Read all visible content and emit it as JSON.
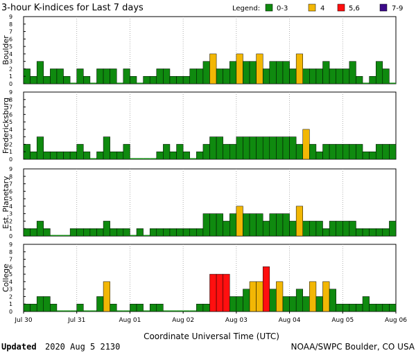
{
  "colors": {
    "quiet": "#0f8a0f",
    "active": "#f2b705",
    "storm": "#ff0f0f",
    "severe": "#3d0a8a",
    "bar_edge": "#000000",
    "frame": "#000000",
    "grid": "#9a9a9a"
  },
  "footer": {
    "updated_label": "Updated",
    "updated_value": "2020 Aug  5 2130",
    "credit": "NOAA/SWPC Boulder, CO USA"
  },
  "chart_data": {
    "type": "bar",
    "title": "3-hour K-indices for Last 7 days",
    "xlabel": "Coordinate Universal Time (UTC)",
    "ylim": [
      0,
      9
    ],
    "y_ticks": [
      "0",
      "1",
      "2",
      "3",
      "4",
      "5",
      "6",
      "7",
      "8",
      "9"
    ],
    "x_ticks": [
      "Jul 30",
      "Jul 31",
      "Aug 01",
      "Aug 02",
      "Aug 03",
      "Aug 04",
      "Aug 05",
      "Aug 06"
    ],
    "intervals": 56,
    "legend": [
      {
        "label": "Legend:",
        "color": ""
      },
      {
        "label": "0-3",
        "color": "#0f8a0f"
      },
      {
        "label": "4",
        "color": "#f2b705"
      },
      {
        "label": "5,6",
        "color": "#ff0f0f"
      },
      {
        "label": "7-9",
        "color": "#3d0a8a"
      }
    ],
    "series": [
      {
        "name": "Boulder",
        "values": [
          2,
          1,
          3,
          1,
          2,
          2,
          1,
          0,
          2,
          1,
          0,
          2,
          2,
          2,
          0,
          2,
          1,
          0,
          1,
          1,
          2,
          2,
          1,
          1,
          1,
          2,
          2,
          3,
          4,
          2,
          2,
          3,
          4,
          3,
          3,
          4,
          2,
          3,
          3,
          3,
          2,
          4,
          2,
          2,
          2,
          3,
          2,
          2,
          2,
          3,
          1,
          0,
          1,
          3,
          2,
          0
        ]
      },
      {
        "name": "Fredericksburg",
        "values": [
          2,
          1,
          3,
          1,
          1,
          1,
          1,
          1,
          2,
          1,
          0,
          1,
          3,
          1,
          1,
          2,
          0,
          0,
          0,
          0,
          1,
          2,
          1,
          2,
          1,
          0,
          1,
          2,
          3,
          3,
          2,
          2,
          3,
          3,
          3,
          3,
          3,
          3,
          3,
          3,
          3,
          2,
          4,
          2,
          1,
          2,
          2,
          2,
          2,
          2,
          2,
          1,
          1,
          2,
          2,
          2
        ]
      },
      {
        "name": "Est. Planetary",
        "values": [
          1,
          1,
          2,
          1,
          0,
          0,
          0,
          1,
          1,
          1,
          1,
          1,
          2,
          1,
          1,
          1,
          0,
          1,
          0,
          1,
          1,
          1,
          1,
          1,
          1,
          1,
          1,
          3,
          3,
          3,
          2,
          3,
          4,
          3,
          3,
          3,
          2,
          3,
          3,
          3,
          2,
          4,
          2,
          2,
          2,
          1,
          2,
          2,
          2,
          2,
          1,
          1,
          1,
          1,
          1,
          2
        ]
      },
      {
        "name": "College",
        "values": [
          1,
          1,
          2,
          2,
          1,
          0,
          0,
          0,
          1,
          0,
          0,
          2,
          4,
          1,
          0,
          0,
          1,
          1,
          0,
          1,
          1,
          0,
          0,
          0,
          0,
          0,
          1,
          1,
          5,
          5,
          5,
          2,
          2,
          3,
          4,
          4,
          6,
          3,
          4,
          2,
          2,
          3,
          2,
          4,
          2,
          4,
          3,
          1,
          1,
          1,
          1,
          2,
          1,
          1,
          1,
          1
        ]
      }
    ]
  }
}
